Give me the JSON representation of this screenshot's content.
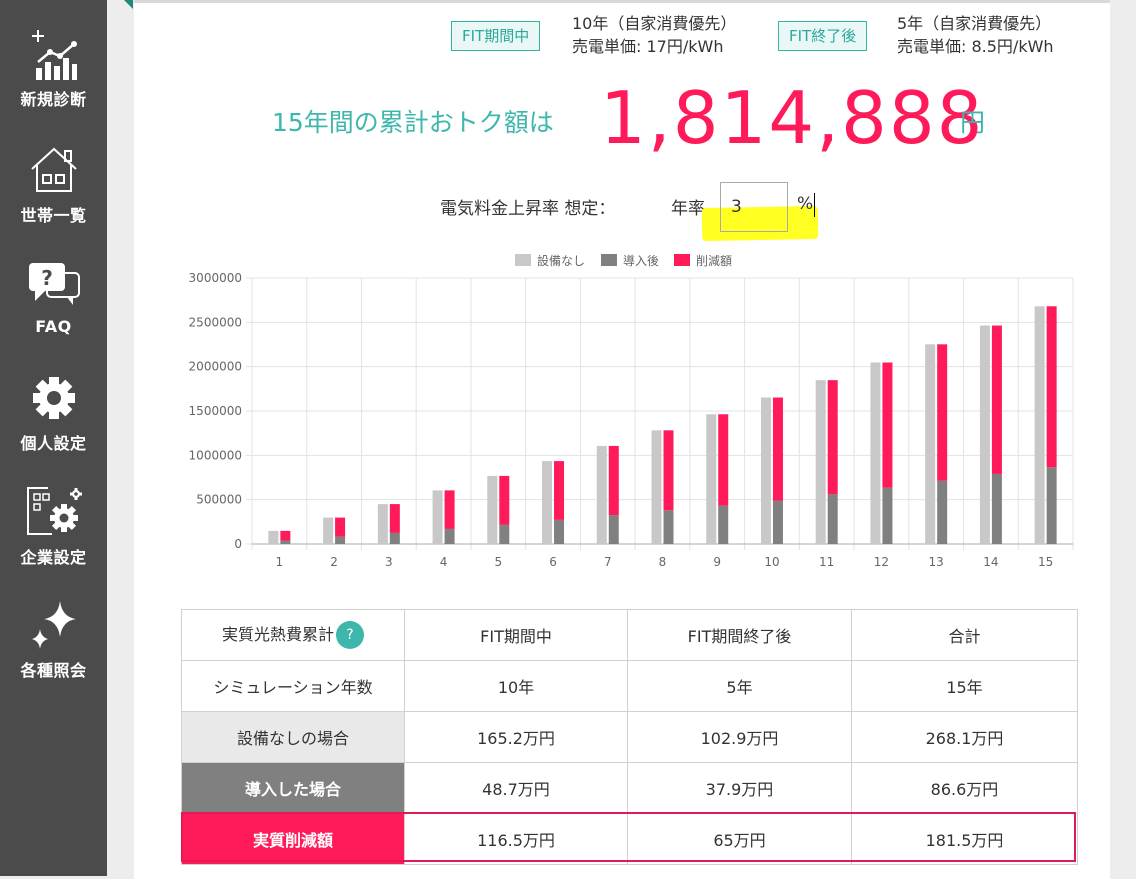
{
  "sidebar": {
    "items": [
      {
        "label": "新規診断",
        "icon": "new-diagnosis-chart-icon"
      },
      {
        "label": "世帯一覧",
        "icon": "house-icon"
      },
      {
        "label": "FAQ",
        "icon": "faq-speech-bubble-icon"
      },
      {
        "label": "個人設定",
        "icon": "gear-icon"
      },
      {
        "label": "企業設定",
        "icon": "company-settings-icon"
      },
      {
        "label": "各種照会",
        "icon": "sparkle-icon"
      }
    ]
  },
  "fit": {
    "during": {
      "badge": "FIT期間中",
      "line1": "10年（自家消費優先）",
      "line2": "売電単価: 17円/kWh"
    },
    "after": {
      "badge": "FIT終了後",
      "line1": "5年（自家消費優先）",
      "line2": "売電単価: 8.5円/kWh"
    }
  },
  "headline": {
    "label": "15年間の累計おトク額は",
    "amount": "1,814,888",
    "unit": "円"
  },
  "rate": {
    "label": "電気料金上昇率 想定：",
    "year_label": "年率",
    "value": "3",
    "unit": "%"
  },
  "colors": {
    "teal": "#3db7ac",
    "pink": "#ff1a59",
    "light_gray": "#c8c8c8",
    "dark_gray": "#808080",
    "highlight": "#ffff22"
  },
  "chart_data": {
    "type": "bar",
    "categories": [
      "1",
      "2",
      "3",
      "4",
      "5",
      "6",
      "7",
      "8",
      "9",
      "10",
      "11",
      "12",
      "13",
      "14",
      "15"
    ],
    "series": [
      {
        "name": "設備なし",
        "color": "#c8c8c8",
        "values": [
          148000,
          298000,
          450000,
          605000,
          768000,
          935000,
          1106000,
          1282000,
          1463000,
          1652000,
          1848000,
          2047000,
          2252000,
          2464000,
          2681000
        ]
      },
      {
        "name": "導入後",
        "color": "#808080",
        "values": [
          40000,
          82000,
          125000,
          170000,
          216000,
          272000,
          326000,
          380000,
          432000,
          487000,
          560000,
          636000,
          715000,
          790000,
          866000
        ]
      },
      {
        "name": "削減額",
        "color": "#ff1a59",
        "values": [
          108000,
          216000,
          325000,
          435000,
          552000,
          663000,
          780000,
          902000,
          1031000,
          1165000,
          1288000,
          1411000,
          1537000,
          1674000,
          1815000
        ]
      }
    ],
    "stack_note": "導入後 and 削減額 stack to equal 設備なし",
    "ylim": [
      0,
      3000000
    ],
    "yticks": [
      "0",
      "500000",
      "1000000",
      "1500000",
      "2000000",
      "2500000",
      "3000000"
    ],
    "grid": true,
    "legend": "top-center"
  },
  "table": {
    "headers": [
      "実質光熱費累計",
      "FIT期間中",
      "FIT期間終了後",
      "合計"
    ],
    "help": "?",
    "rows": [
      {
        "label": "シミュレーション年数",
        "values": [
          "10年",
          "5年",
          "15年"
        ]
      },
      {
        "label": "設備なしの場合",
        "values": [
          "165.2万円",
          "102.9万円",
          "268.1万円"
        ]
      },
      {
        "label": "導入した場合",
        "values": [
          "48.7万円",
          "37.9万円",
          "86.6万円"
        ]
      },
      {
        "label": "実質削減額",
        "values": [
          "116.5万円",
          "65万円",
          "181.5万円"
        ]
      }
    ]
  }
}
